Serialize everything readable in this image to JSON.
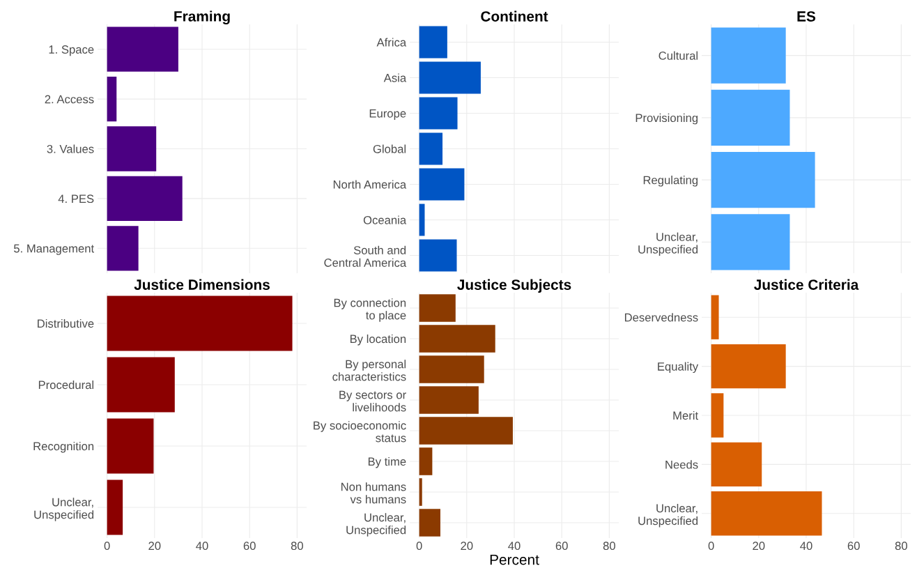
{
  "chart_data": [
    {
      "type": "bar",
      "orientation": "horizontal",
      "title": "Framing",
      "categories": [
        "1. Space",
        "2. Access",
        "3. Values",
        "4. PES",
        "5. Management"
      ],
      "values": [
        30,
        4,
        20.7,
        31.7,
        13.2
      ],
      "color": "#4b0082",
      "xlim": [
        -4,
        84
      ],
      "xticks": [
        0,
        20,
        40,
        60,
        80
      ],
      "grid": true,
      "tick_labels": "y"
    },
    {
      "type": "bar",
      "orientation": "horizontal",
      "title": "Continent",
      "categories": [
        "Africa",
        "Asia",
        "Europe",
        "Global",
        "North America",
        "Oceania",
        "South and\nCentral America"
      ],
      "values": [
        11.8,
        25.9,
        16.1,
        9.8,
        19,
        2.3,
        15.8
      ],
      "color": "#0055c4",
      "xlim": [
        -4,
        84
      ],
      "xticks": [
        0,
        20,
        40,
        60,
        80
      ],
      "grid": true,
      "tick_labels": "y"
    },
    {
      "type": "bar",
      "orientation": "horizontal",
      "title": "ES",
      "categories": [
        "Cultural",
        "Provisioning",
        "Regulating",
        "Unclear,\nUnspecified"
      ],
      "values": [
        31.4,
        33.1,
        43.7,
        33.1
      ],
      "color": "#4da9ff",
      "xlim": [
        -4,
        84
      ],
      "xticks": [
        0,
        20,
        40,
        60,
        80
      ],
      "grid": true,
      "tick_labels": "y"
    },
    {
      "type": "bar",
      "orientation": "horizontal",
      "title": "Justice Dimensions",
      "categories": [
        "Distributive",
        "Procedural",
        "Recognition",
        "Unclear,\nUnspecified"
      ],
      "values": [
        78,
        28.5,
        19.6,
        6.6
      ],
      "color": "#8b0000",
      "xlim": [
        -4,
        84
      ],
      "xticks": [
        0,
        20,
        40,
        60,
        80
      ],
      "grid": true
    },
    {
      "type": "bar",
      "orientation": "horizontal",
      "title": "Justice Subjects",
      "xlabel": "Percent",
      "categories": [
        "By connection\nto place",
        "By location",
        "By personal\ncharacteristics",
        "By sectors or\nlivelihoods",
        "By socioeconomic\nstatus",
        "By time",
        "Non humans\nvs humans",
        "Unclear,\nUnspecified"
      ],
      "values": [
        15.3,
        32,
        27.3,
        25,
        39.4,
        5.5,
        1.2,
        8.9
      ],
      "color": "#8b3a00",
      "xlim": [
        -4,
        84
      ],
      "xticks": [
        0,
        20,
        40,
        60,
        80
      ],
      "grid": true
    },
    {
      "type": "bar",
      "orientation": "horizontal",
      "title": "Justice Criteria",
      "categories": [
        "Deservedness",
        "Equality",
        "Merit",
        "Needs",
        "Unclear,\nUnspecified"
      ],
      "values": [
        3.2,
        31.4,
        5.2,
        21.3,
        46.6
      ],
      "color": "#d95f02",
      "xlim": [
        -4,
        84
      ],
      "xticks": [
        0,
        20,
        40,
        60,
        80
      ],
      "grid": true
    }
  ]
}
